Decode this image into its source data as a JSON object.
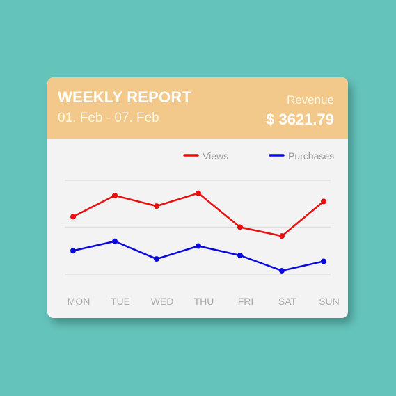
{
  "report": {
    "title": "WEEKLY REPORT",
    "date_range": "01. Feb - 07. Feb",
    "revenue_label": "Revenue",
    "revenue_value": "$ 3621.79"
  },
  "colors": {
    "background": "#64c4bc",
    "header": "#f2c98a",
    "views": "#e80f0f",
    "purchases": "#0a0ae0"
  },
  "chart_data": {
    "type": "line",
    "title": "",
    "xlabel": "",
    "ylabel": "",
    "categories": [
      "MON",
      "TUE",
      "WED",
      "THU",
      "FRI",
      "SAT",
      "SUN"
    ],
    "series": [
      {
        "name": "Views",
        "values": [
          1.9,
          3.7,
          2.8,
          3.9,
          1.0,
          0.25,
          3.2
        ]
      },
      {
        "name": "Purchases",
        "values": [
          -1.0,
          -0.2,
          -1.7,
          -0.6,
          -1.4,
          -2.7,
          -1.9
        ]
      }
    ],
    "ylim": [
      -3,
      5
    ],
    "grid": true,
    "legend": "top-right"
  }
}
